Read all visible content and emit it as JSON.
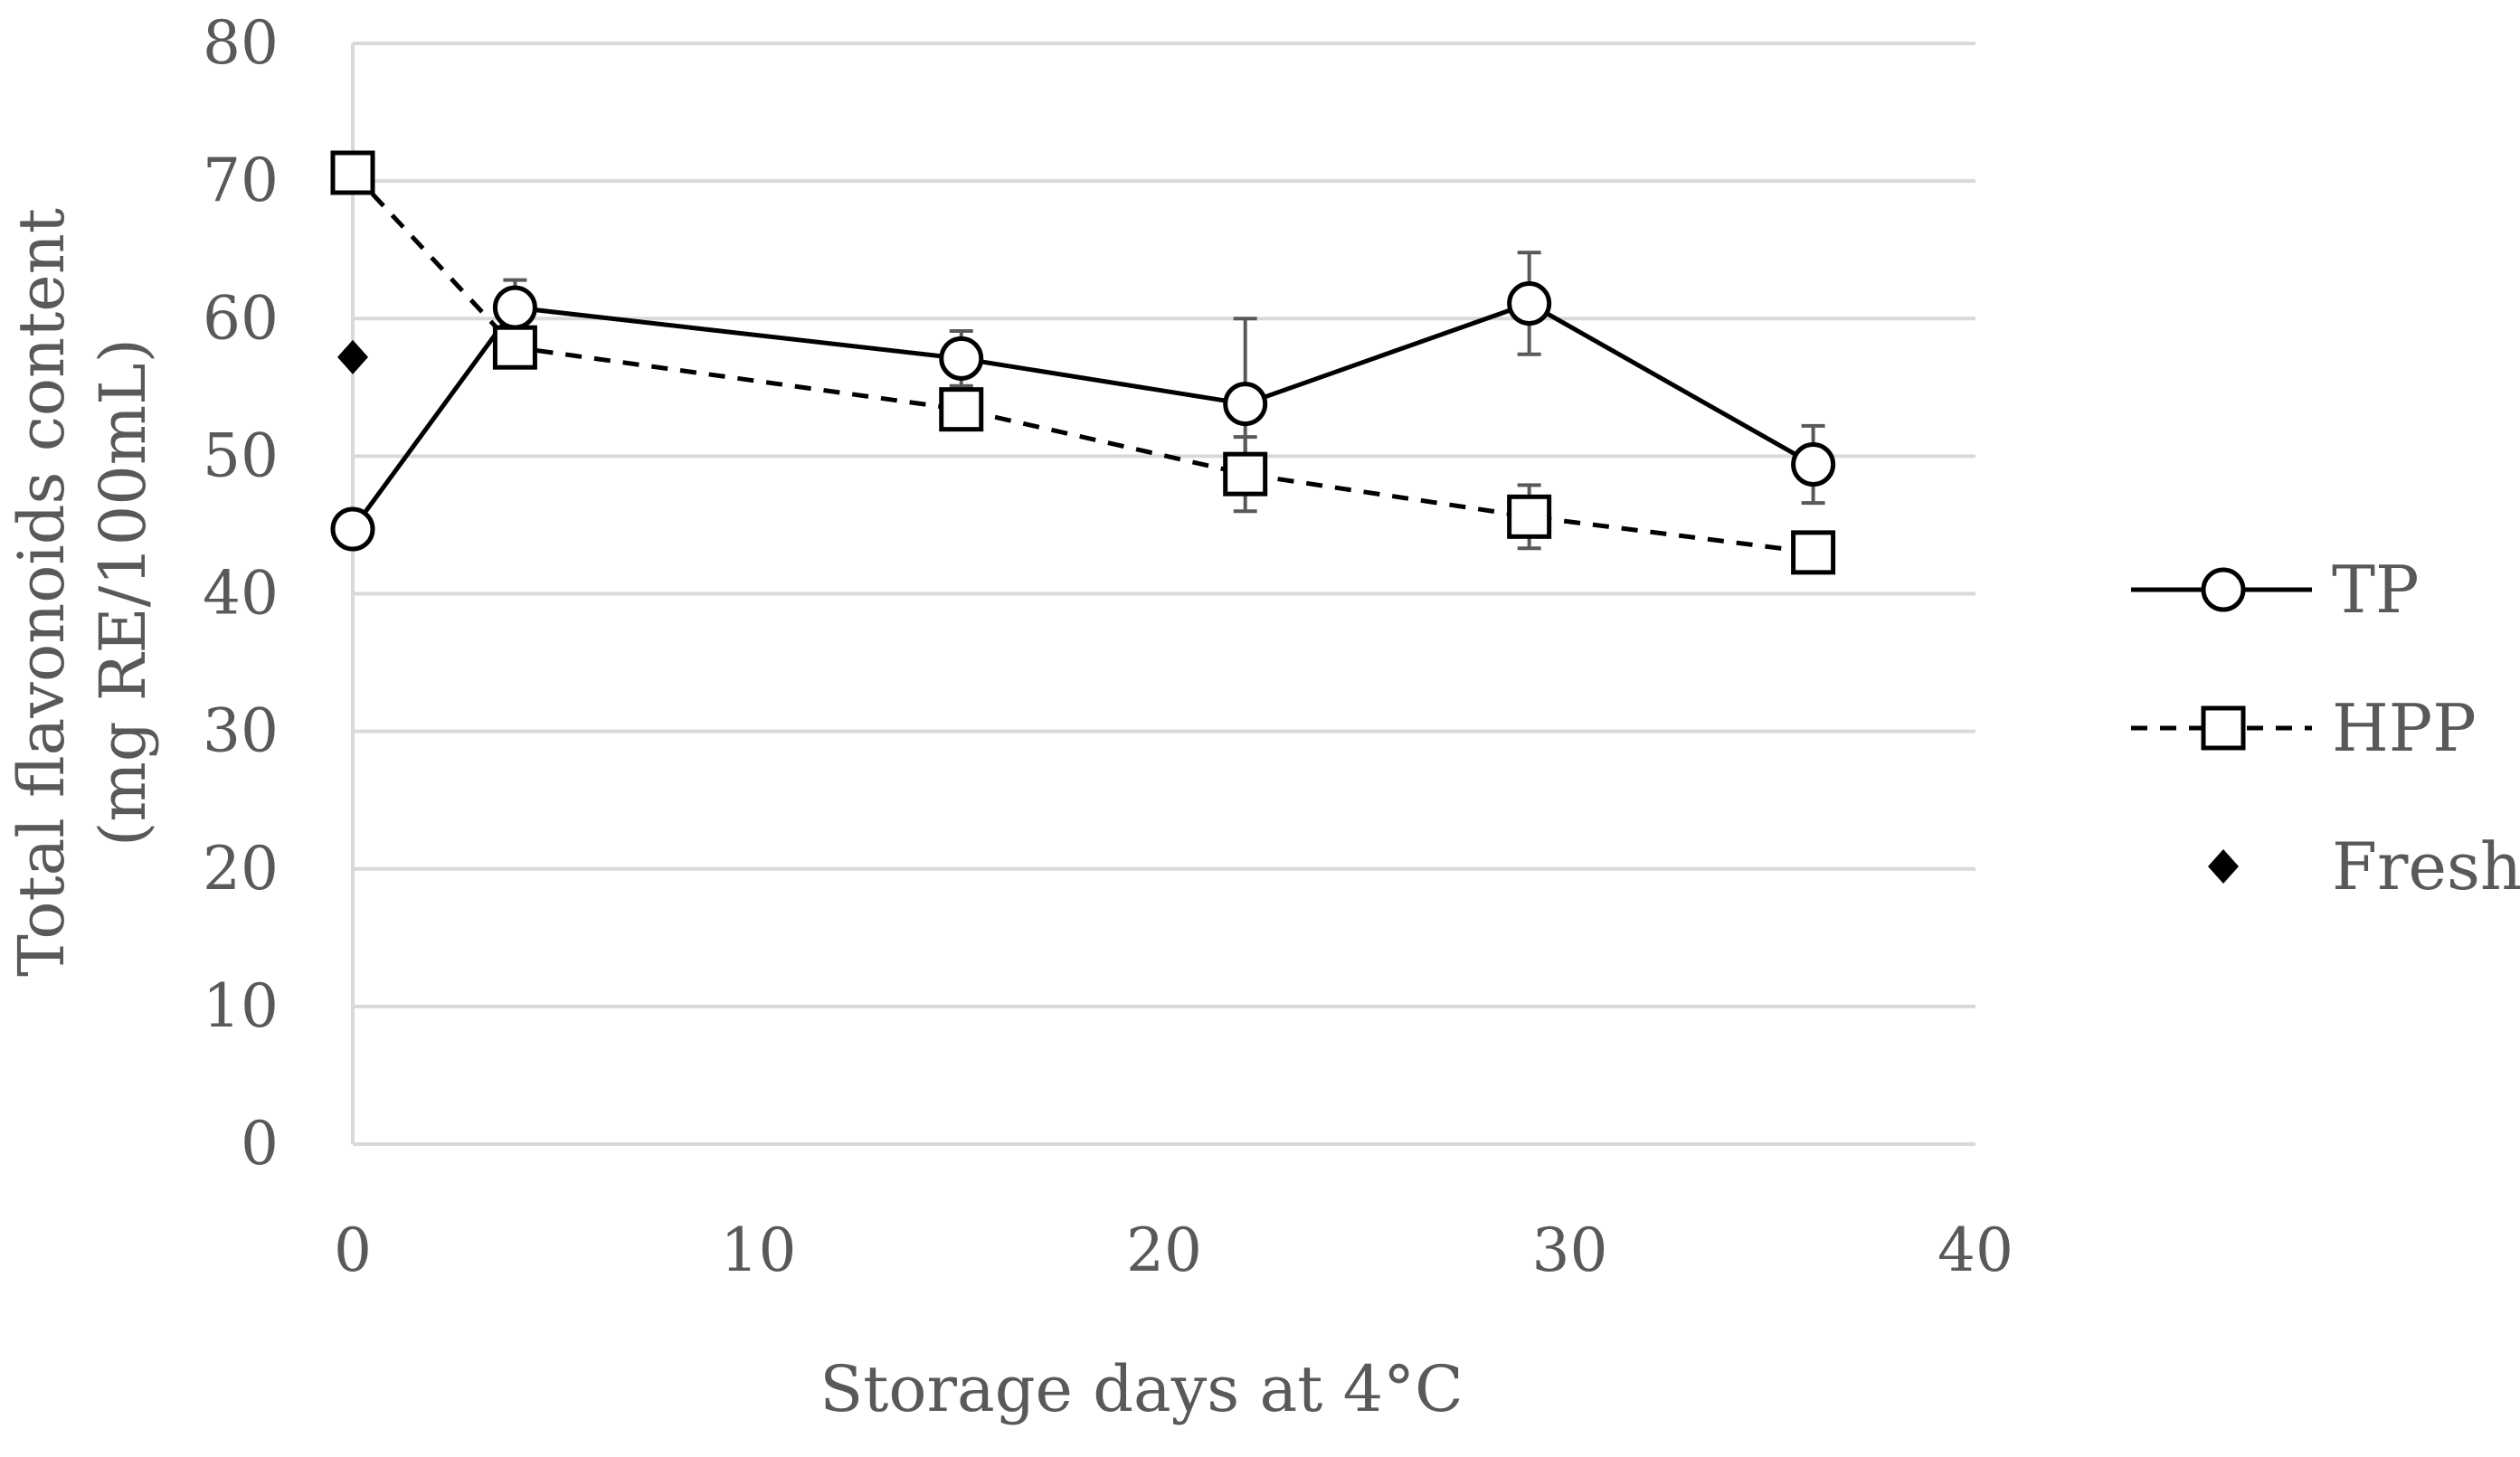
{
  "chart_data": {
    "type": "scatter",
    "xlabel": "Storage days at 4°C",
    "ylabel_line1": "Total flavonoids content",
    "ylabel_line2": "(mg RE/100mL)",
    "xlim": [
      0,
      40
    ],
    "ylim": [
      0,
      80
    ],
    "x_ticks": [
      0,
      10,
      20,
      30,
      40
    ],
    "y_ticks": [
      0,
      10,
      20,
      30,
      40,
      50,
      60,
      70,
      80
    ],
    "grid": true,
    "legend_position": "right",
    "series": [
      {
        "name": "TP",
        "marker": "circle",
        "line": "solid",
        "color": "#000000",
        "x": [
          0,
          4,
          15,
          22,
          29,
          36
        ],
        "y": [
          44.7,
          60.8,
          57.1,
          53.8,
          61.1,
          49.4
        ],
        "err": [
          0,
          2.0,
          2.0,
          6.2,
          3.7,
          2.8
        ]
      },
      {
        "name": "HPP",
        "marker": "square",
        "line": "dashed",
        "color": "#000000",
        "x": [
          0,
          4,
          15,
          22,
          29,
          36
        ],
        "y": [
          70.6,
          57.9,
          53.4,
          48.7,
          45.6,
          43.0
        ],
        "err": [
          0,
          1.2,
          0.8,
          2.7,
          2.3,
          0.6
        ]
      },
      {
        "name": "Fresh",
        "marker": "diamond",
        "line": "none",
        "color": "#000000",
        "x": [
          0
        ],
        "y": [
          57.2
        ],
        "err": [
          0
        ]
      }
    ]
  }
}
